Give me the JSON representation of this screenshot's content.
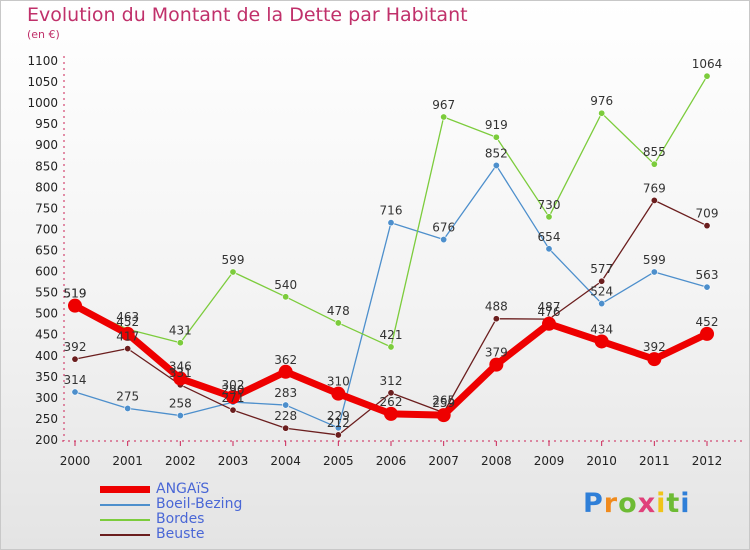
{
  "page": {
    "title": "Evolution du Montant de la Dette par Habitant",
    "subtitle": "(en €)",
    "logo": {
      "letters": [
        "P",
        "r",
        "o",
        "x",
        "i",
        "t",
        "i"
      ],
      "colors": [
        "#2f7fd8",
        "#f08a1c",
        "#6dbb34",
        "#e0407a",
        "#f0c419",
        "#6dbb34",
        "#2f7fd8"
      ]
    }
  },
  "chart_data": {
    "type": "line",
    "title": "Evolution du Montant de la Dette par Habitant",
    "subtitle": "(en €)",
    "x": [
      "2000",
      "2001",
      "2002",
      "2003",
      "2004",
      "2005",
      "2006",
      "2007",
      "2008",
      "2009",
      "2010",
      "2011",
      "2012"
    ],
    "ylim": [
      200,
      1100
    ],
    "yticks": [
      "200",
      "250",
      "300",
      "350",
      "400",
      "450",
      "500",
      "550",
      "600",
      "650",
      "700",
      "750",
      "800",
      "850",
      "900",
      "950",
      "1000",
      "1050",
      "1100"
    ],
    "grid": false,
    "legend_position": "bottom-left",
    "series": [
      {
        "name": "ANGAïS",
        "color": "#ee0000",
        "width": 7,
        "marker": 7,
        "values": [
          519,
          452,
          346,
          302,
          362,
          310,
          262,
          259,
          379,
          476,
          434,
          392,
          452
        ],
        "labels": [
          "519",
          "452",
          "346",
          "302",
          "362",
          "310",
          "262",
          "259",
          "379",
          "476",
          "434",
          "392",
          "452"
        ]
      },
      {
        "name": "Boeil-Bezing",
        "color": "#4d8fcc",
        "width": 1.3,
        "marker": 3.2,
        "values": [
          314,
          275,
          258,
          290,
          283,
          229,
          716,
          676,
          852,
          654,
          524,
          599,
          563
        ],
        "labels": [
          "314",
          "275",
          "258",
          "290",
          "283",
          "229",
          "716",
          "676",
          "852",
          "654",
          "524",
          "599",
          "563"
        ]
      },
      {
        "name": "Bordes",
        "color": "#7ccc3c",
        "width": 1.3,
        "marker": 3.2,
        "values": [
          519,
          463,
          431,
          599,
          540,
          478,
          421,
          967,
          919,
          730,
          976,
          855,
          1064
        ],
        "labels": [
          "519",
          "463",
          "431",
          "599",
          "540",
          "478",
          "421",
          "967",
          "919",
          "730",
          "976",
          "855",
          "1064"
        ]
      },
      {
        "name": "Beuste",
        "color": "#6b1e1e",
        "width": 1.3,
        "marker": 3.2,
        "values": [
          392,
          417,
          331,
          271,
          228,
          212,
          312,
          265,
          488,
          487,
          577,
          769,
          709
        ],
        "labels": [
          "392",
          "417",
          "331",
          "271",
          "228",
          "212",
          "312",
          "265",
          "488",
          "487",
          "577",
          "769",
          "709"
        ]
      }
    ]
  }
}
